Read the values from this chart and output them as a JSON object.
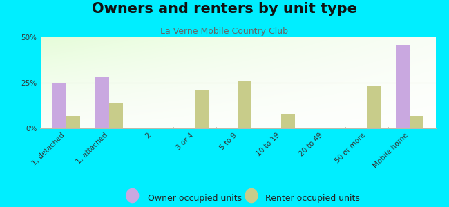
{
  "title": "Owners and renters by unit type",
  "subtitle": "La Verne Mobile Country Club",
  "categories": [
    "1, detached",
    "1, attached",
    "2",
    "3 or 4",
    "5 to 9",
    "10 to 19",
    "20 to 49",
    "50 or more",
    "Mobile home"
  ],
  "owner_values": [
    25,
    28,
    0,
    0,
    0,
    0,
    0,
    0,
    46
  ],
  "renter_values": [
    7,
    14,
    0,
    21,
    26,
    8,
    0,
    23,
    7
  ],
  "owner_color": "#c9a8e0",
  "renter_color": "#c8cc8a",
  "ylim": [
    0,
    50
  ],
  "yticks": [
    0,
    25,
    50
  ],
  "ytick_labels": [
    "0%",
    "25%",
    "50%"
  ],
  "figure_bg": "#00eeff",
  "bar_width": 0.32,
  "title_fontsize": 15,
  "subtitle_fontsize": 9,
  "tick_fontsize": 7.5,
  "legend_fontsize": 9
}
